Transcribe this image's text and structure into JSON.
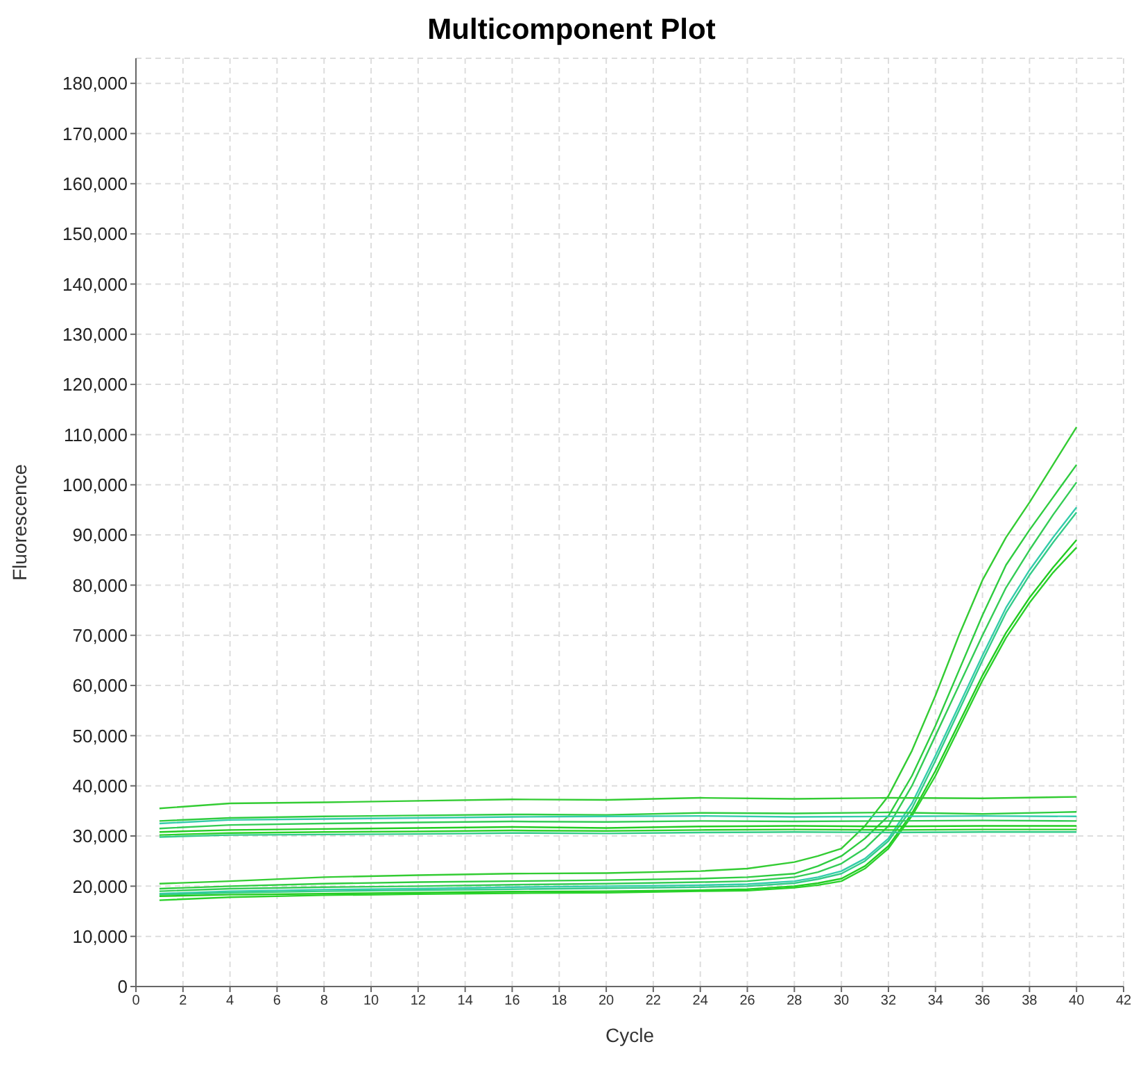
{
  "chart_data": {
    "type": "line",
    "title": "Multicomponent Plot",
    "xlabel": "Cycle",
    "ylabel": "Fluorescence",
    "xlim": [
      0,
      42
    ],
    "xticks": [
      0,
      2,
      4,
      6,
      8,
      10,
      12,
      14,
      16,
      18,
      20,
      22,
      24,
      26,
      28,
      30,
      32,
      34,
      36,
      38,
      40,
      42
    ],
    "ylim": [
      0,
      185000
    ],
    "yticks": [
      {
        "value": 0,
        "label": "0"
      },
      {
        "value": 10000,
        "label": "10,000"
      },
      {
        "value": 20000,
        "label": "20,000"
      },
      {
        "value": 30000,
        "label": "30,000"
      },
      {
        "value": 40000,
        "label": "40,000"
      },
      {
        "value": 50000,
        "label": "50,000"
      },
      {
        "value": 60000,
        "label": "60,000"
      },
      {
        "value": 70000,
        "label": "70,000"
      },
      {
        "value": 80000,
        "label": "80,000"
      },
      {
        "value": 90000,
        "label": "90,000"
      },
      {
        "value": 100000,
        "label": "100,000"
      },
      {
        "value": 110000,
        "label": "110,000"
      },
      {
        "value": 120000,
        "label": "120,000"
      },
      {
        "value": 130000,
        "label": "130,000"
      },
      {
        "value": 140000,
        "label": "140,000"
      },
      {
        "value": 150000,
        "label": "150,000"
      },
      {
        "value": 160000,
        "label": "160,000"
      },
      {
        "value": 170000,
        "label": "170,000"
      },
      {
        "value": 180000,
        "label": "180,000"
      }
    ],
    "grid": true,
    "marker": "none",
    "line_style": "solid",
    "series": [
      {
        "color": "#33cc33",
        "x": [
          1,
          4,
          8,
          12,
          16,
          20,
          24,
          26,
          28,
          29,
          30,
          31,
          32,
          33,
          34,
          35,
          36,
          37,
          38,
          39,
          40
        ],
        "values": [
          20500,
          21000,
          21800,
          22200,
          22500,
          22600,
          23000,
          23500,
          24800,
          26000,
          27500,
          32000,
          38000,
          47000,
          58000,
          70000,
          81000,
          89500,
          96500,
          104000,
          111500
        ]
      },
      {
        "color": "#2ecc40",
        "x": [
          1,
          4,
          8,
          12,
          16,
          20,
          24,
          26,
          28,
          29,
          30,
          31,
          32,
          33,
          34,
          35,
          36,
          37,
          38,
          39,
          40
        ],
        "values": [
          19500,
          20000,
          20500,
          20800,
          21000,
          21200,
          21500,
          21800,
          22500,
          24000,
          26000,
          29500,
          34000,
          42000,
          52000,
          63000,
          74000,
          84000,
          91000,
          97500,
          104000
        ]
      },
      {
        "color": "#33cc55",
        "x": [
          1,
          4,
          8,
          12,
          16,
          20,
          24,
          26,
          28,
          29,
          30,
          31,
          32,
          33,
          34,
          35,
          36,
          37,
          38,
          39,
          40
        ],
        "values": [
          19000,
          19500,
          19800,
          20000,
          20300,
          20500,
          20800,
          21000,
          21800,
          22800,
          24500,
          27500,
          32000,
          40000,
          50000,
          60000,
          70000,
          79500,
          87000,
          94000,
          100500
        ]
      },
      {
        "color": "#33ccaa",
        "x": [
          1,
          4,
          8,
          12,
          16,
          20,
          24,
          26,
          28,
          29,
          30,
          31,
          32,
          33,
          34,
          35,
          36,
          37,
          38,
          39,
          40
        ],
        "values": [
          18500,
          19000,
          19300,
          19500,
          19800,
          20000,
          20200,
          20400,
          21000,
          21800,
          23000,
          25500,
          29500,
          36500,
          46000,
          56000,
          66000,
          75500,
          83000,
          89500,
          95500
        ]
      },
      {
        "color": "#33cc88",
        "x": [
          1,
          4,
          8,
          12,
          16,
          20,
          24,
          26,
          28,
          29,
          30,
          31,
          32,
          33,
          34,
          35,
          36,
          37,
          38,
          39,
          40
        ],
        "values": [
          18300,
          18700,
          19000,
          19200,
          19400,
          19600,
          19800,
          20000,
          20600,
          21400,
          22500,
          25000,
          29000,
          35500,
          45000,
          55000,
          65000,
          74500,
          82000,
          88500,
          94500
        ]
      },
      {
        "color": "#22cc22",
        "x": [
          1,
          4,
          8,
          12,
          16,
          20,
          24,
          26,
          28,
          29,
          30,
          31,
          32,
          33,
          34,
          35,
          36,
          37,
          38,
          39,
          40
        ],
        "values": [
          18000,
          18300,
          18500,
          18700,
          18900,
          19000,
          19200,
          19400,
          20000,
          20600,
          21500,
          24000,
          28000,
          34500,
          43000,
          52500,
          62000,
          70500,
          77500,
          83500,
          89000
        ]
      },
      {
        "color": "#2ad12a",
        "x": [
          1,
          4,
          8,
          12,
          16,
          20,
          24,
          26,
          28,
          29,
          30,
          31,
          32,
          33,
          34,
          35,
          36,
          37,
          38,
          39,
          40
        ],
        "values": [
          17200,
          17800,
          18200,
          18400,
          18600,
          18700,
          19000,
          19100,
          19700,
          20200,
          21000,
          23500,
          27500,
          34000,
          42000,
          51500,
          61000,
          69500,
          76500,
          82500,
          87500
        ]
      },
      {
        "color": "#33cc33",
        "x": [
          1,
          4,
          8,
          12,
          16,
          20,
          24,
          28,
          32,
          36,
          40
        ],
        "values": [
          35500,
          36500,
          36700,
          37000,
          37300,
          37200,
          37600,
          37400,
          37600,
          37500,
          37800
        ]
      },
      {
        "color": "#2ecc40",
        "x": [
          1,
          4,
          8,
          12,
          16,
          20,
          24,
          28,
          32,
          36,
          40
        ],
        "values": [
          33000,
          33600,
          33900,
          34100,
          34300,
          34200,
          34600,
          34500,
          34700,
          34400,
          34800
        ]
      },
      {
        "color": "#33ccaa",
        "x": [
          1,
          4,
          8,
          12,
          16,
          20,
          24,
          28,
          32,
          36,
          40
        ],
        "values": [
          32500,
          33200,
          33400,
          33600,
          33800,
          33900,
          34000,
          33800,
          33900,
          34000,
          33900
        ]
      },
      {
        "color": "#33cc55",
        "x": [
          1,
          4,
          8,
          12,
          16,
          20,
          24,
          28,
          32,
          36,
          40
        ],
        "values": [
          31500,
          32200,
          32500,
          32700,
          32900,
          32800,
          33000,
          32900,
          33000,
          33100,
          33000
        ]
      },
      {
        "color": "#22cc22",
        "x": [
          1,
          4,
          8,
          12,
          16,
          20,
          24,
          28,
          32,
          36,
          40
        ],
        "values": [
          30800,
          31200,
          31400,
          31600,
          31800,
          31600,
          31900,
          32000,
          31900,
          32000,
          32000
        ]
      },
      {
        "color": "#2ad12a",
        "x": [
          1,
          4,
          8,
          12,
          16,
          20,
          24,
          28,
          32,
          36,
          40
        ],
        "values": [
          30200,
          30600,
          30800,
          30900,
          31100,
          31000,
          31200,
          31300,
          31200,
          31300,
          31300
        ]
      },
      {
        "color": "#33cc88",
        "x": [
          1,
          4,
          8,
          12,
          16,
          20,
          24,
          28,
          32,
          36,
          40
        ],
        "values": [
          29800,
          30200,
          30300,
          30400,
          30600,
          30500,
          30700,
          30800,
          30700,
          30800,
          30800
        ]
      }
    ]
  }
}
